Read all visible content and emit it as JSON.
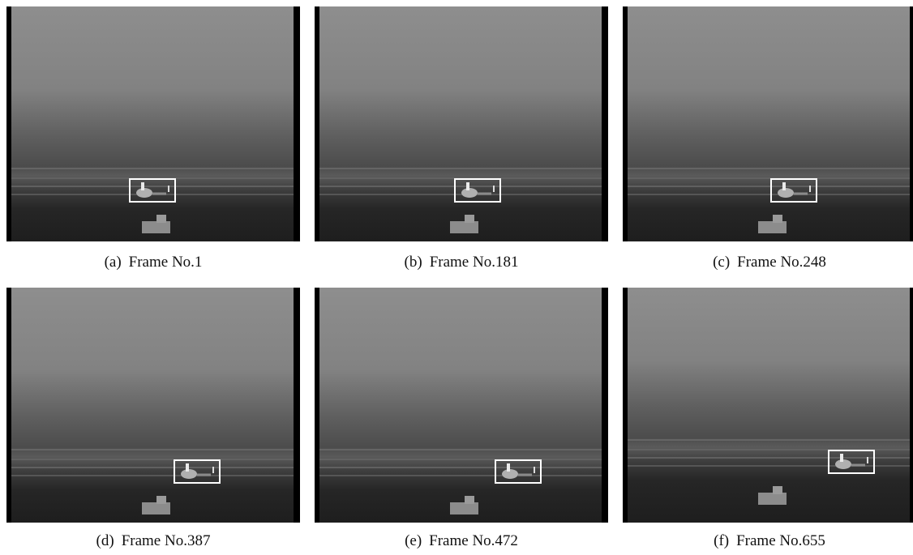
{
  "panels": [
    {
      "label": "(a)",
      "frame": "Frame No.1"
    },
    {
      "label": "(b)",
      "frame": "Frame No.181"
    },
    {
      "label": "(c)",
      "frame": "Frame No.248"
    },
    {
      "label": "(d)",
      "frame": "Frame No.387"
    },
    {
      "label": "(e)",
      "frame": "Frame No.472"
    },
    {
      "label": "(f)",
      "frame": "Frame No.655"
    }
  ]
}
